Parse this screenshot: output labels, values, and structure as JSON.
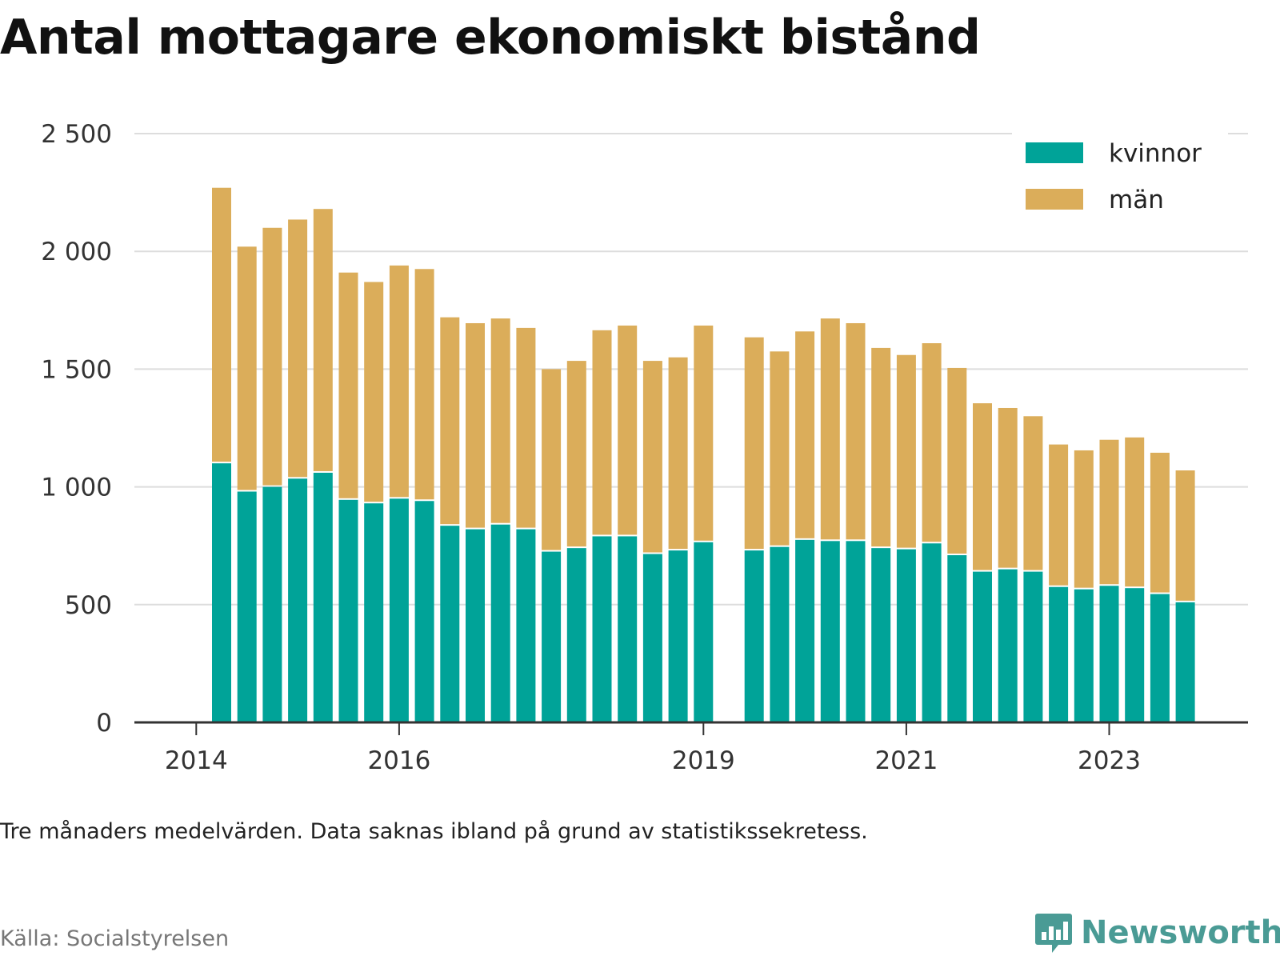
{
  "brand": {
    "name": "Newsworthy",
    "color": "#4a9b95"
  },
  "note": "Tre månaders medelvärden. Data saknas ibland på grund av statistikssekretess.",
  "source": "Källa: Socialstyrelsen",
  "chart_data": {
    "type": "bar",
    "stacked": true,
    "title": "Antal mottagare ekonomiskt bistånd",
    "xlabel": "",
    "ylabel": "",
    "ylim": [
      0,
      2500
    ],
    "yticks": [
      0,
      500,
      1000,
      1500,
      2000,
      2500
    ],
    "ytick_labels": [
      "0",
      "500",
      "1 000",
      "1 500",
      "2 000",
      "2 500"
    ],
    "grid": true,
    "legend_position": "top-right",
    "x_tick_labels": [
      {
        "label": "2014",
        "slot": -1
      },
      {
        "label": "2016",
        "slot": 7
      },
      {
        "label": "2019",
        "slot": 19
      },
      {
        "label": "2021",
        "slot": 27
      },
      {
        "label": "2023",
        "slot": 35
      }
    ],
    "categories": [
      "2014-Q2",
      "2014-Q3",
      "2014-Q4",
      "2015-Q1",
      "2015-Q2",
      "2015-Q3",
      "2015-Q4",
      "2016-Q1",
      "2016-Q2",
      "2016-Q3",
      "2016-Q4",
      "2017-Q1",
      "2017-Q2",
      "2017-Q3",
      "2017-Q4",
      "2018-Q1",
      "2018-Q2",
      "2018-Q3",
      "2018-Q4",
      "2019-Q1",
      "2019-Q2",
      "2019-Q3",
      "2019-Q4",
      "2020-Q1",
      "2020-Q2",
      "2020-Q3",
      "2020-Q4",
      "2021-Q1",
      "2021-Q2",
      "2021-Q3",
      "2021-Q4",
      "2022-Q1",
      "2022-Q2",
      "2022-Q3",
      "2022-Q4",
      "2023-Q1",
      "2023-Q2",
      "2023-Q3",
      "2023-Q4",
      "2024-Q1"
    ],
    "series": [
      {
        "name": "kvinnor",
        "color": "#00a398",
        "values": [
          1100,
          980,
          1000,
          1035,
          1060,
          945,
          930,
          950,
          940,
          835,
          820,
          840,
          820,
          725,
          740,
          790,
          790,
          715,
          730,
          765,
          null,
          730,
          745,
          775,
          770,
          770,
          740,
          735,
          760,
          710,
          640,
          650,
          640,
          575,
          565,
          580,
          570,
          545,
          510,
          null
        ]
      },
      {
        "name": "män",
        "color": "#dbad5a",
        "values": [
          1170,
          1040,
          1100,
          1100,
          1120,
          965,
          940,
          990,
          985,
          885,
          875,
          875,
          855,
          775,
          795,
          875,
          895,
          820,
          820,
          920,
          null,
          905,
          830,
          885,
          945,
          925,
          850,
          825,
          850,
          795,
          715,
          685,
          660,
          605,
          590,
          620,
          640,
          600,
          560,
          null
        ]
      }
    ]
  }
}
